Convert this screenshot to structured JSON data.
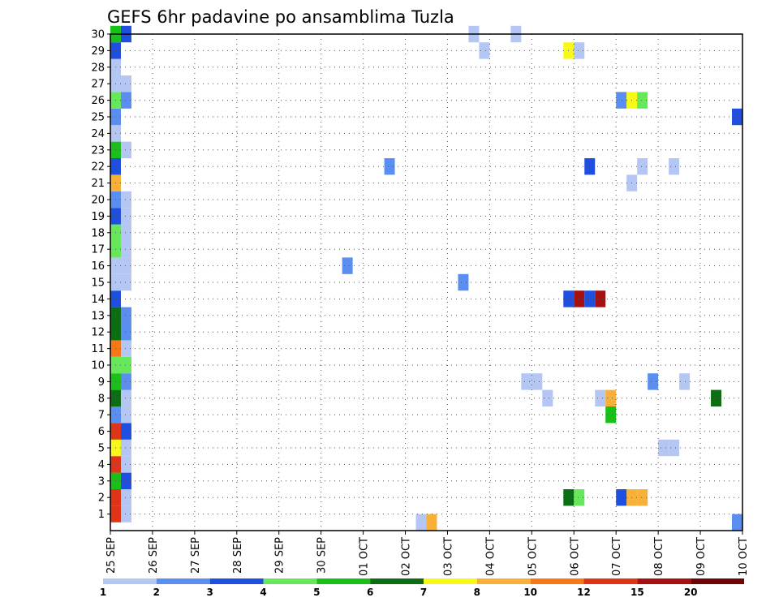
{
  "chart_data": {
    "type": "heatmap",
    "title": "GEFS 6hr padavine po ansamblima Tuzla",
    "x_tick_labels": [
      "25 SEP",
      "26 SEP",
      "27 SEP",
      "28 SEP",
      "29 SEP",
      "30 SEP",
      "01 OCT",
      "02 OCT",
      "03 OCT",
      "04 OCT",
      "05 OCT",
      "06 OCT",
      "07 OCT",
      "08 OCT",
      "09 OCT",
      "10 OCT"
    ],
    "y_tick_labels": [
      "1",
      "2",
      "3",
      "4",
      "5",
      "6",
      "7",
      "8",
      "9",
      "10",
      "11",
      "12",
      "13",
      "14",
      "15",
      "16",
      "17",
      "18",
      "19",
      "20",
      "21",
      "22",
      "23",
      "24",
      "25",
      "26",
      "27",
      "28",
      "29",
      "30"
    ],
    "x_range_days": [
      0,
      15
    ],
    "y_range": [
      0,
      30
    ],
    "grid": true,
    "legend": {
      "placement": "bottom",
      "labels": [
        "1",
        "2",
        "3",
        "4",
        "5",
        "6",
        "7",
        "8",
        "10",
        "12",
        "15",
        "20"
      ],
      "colors": [
        "#b3c6f4",
        "#5a8ef0",
        "#1e4fe0",
        "#66e85a",
        "#18c018",
        "#0c6e12",
        "#f8f818",
        "#f8b038",
        "#f87818",
        "#e03418",
        "#a81010",
        "#6e0606"
      ]
    },
    "cells": [
      {
        "d": 0.125,
        "m": 1,
        "c": 10
      },
      {
        "d": 0.375,
        "m": 1,
        "c": 1
      },
      {
        "d": 0.125,
        "m": 2,
        "c": 10
      },
      {
        "d": 0.375,
        "m": 2,
        "c": 1
      },
      {
        "d": 0.125,
        "m": 3,
        "c": 5
      },
      {
        "d": 0.375,
        "m": 3,
        "c": 3
      },
      {
        "d": 0.125,
        "m": 4,
        "c": 10
      },
      {
        "d": 0.375,
        "m": 4,
        "c": 1
      },
      {
        "d": 0.125,
        "m": 5,
        "c": 7
      },
      {
        "d": 0.375,
        "m": 5,
        "c": 1
      },
      {
        "d": 0.125,
        "m": 6,
        "c": 10
      },
      {
        "d": 0.375,
        "m": 6,
        "c": 3
      },
      {
        "d": 0.125,
        "m": 7,
        "c": 2
      },
      {
        "d": 0.375,
        "m": 7,
        "c": 1
      },
      {
        "d": 0.125,
        "m": 8,
        "c": 6
      },
      {
        "d": 0.375,
        "m": 8,
        "c": 1
      },
      {
        "d": 0.125,
        "m": 9,
        "c": 5
      },
      {
        "d": 0.375,
        "m": 9,
        "c": 2
      },
      {
        "d": 0.125,
        "m": 10,
        "c": 4
      },
      {
        "d": 0.375,
        "m": 10,
        "c": 4
      },
      {
        "d": 0.125,
        "m": 11,
        "c": 9
      },
      {
        "d": 0.375,
        "m": 11,
        "c": 1
      },
      {
        "d": 0.125,
        "m": 12,
        "c": 6
      },
      {
        "d": 0.375,
        "m": 12,
        "c": 2
      },
      {
        "d": 0.125,
        "m": 13,
        "c": 6
      },
      {
        "d": 0.375,
        "m": 13,
        "c": 2
      },
      {
        "d": 0.125,
        "m": 14,
        "c": 3
      },
      {
        "d": 0.125,
        "m": 15,
        "c": 1
      },
      {
        "d": 0.375,
        "m": 15,
        "c": 1
      },
      {
        "d": 0.125,
        "m": 16,
        "c": 1
      },
      {
        "d": 0.375,
        "m": 16,
        "c": 1
      },
      {
        "d": 0.125,
        "m": 17,
        "c": 4
      },
      {
        "d": 0.375,
        "m": 17,
        "c": 1
      },
      {
        "d": 0.125,
        "m": 18,
        "c": 4
      },
      {
        "d": 0.375,
        "m": 18,
        "c": 1
      },
      {
        "d": 0.125,
        "m": 19,
        "c": 3
      },
      {
        "d": 0.375,
        "m": 19,
        "c": 1
      },
      {
        "d": 0.125,
        "m": 20,
        "c": 2
      },
      {
        "d": 0.375,
        "m": 20,
        "c": 1
      },
      {
        "d": 0.125,
        "m": 21,
        "c": 8
      },
      {
        "d": 0.125,
        "m": 22,
        "c": 3
      },
      {
        "d": 0.125,
        "m": 23,
        "c": 5
      },
      {
        "d": 0.375,
        "m": 23,
        "c": 1
      },
      {
        "d": 0.125,
        "m": 24,
        "c": 1
      },
      {
        "d": 0.125,
        "m": 25,
        "c": 2
      },
      {
        "d": 0.125,
        "m": 26,
        "c": 4
      },
      {
        "d": 0.375,
        "m": 26,
        "c": 2
      },
      {
        "d": 0.125,
        "m": 27,
        "c": 1
      },
      {
        "d": 0.375,
        "m": 27,
        "c": 1
      },
      {
        "d": 0.125,
        "m": 28,
        "c": 1
      },
      {
        "d": 0.125,
        "m": 29,
        "c": 3
      },
      {
        "d": 0.125,
        "m": 30,
        "c": 5
      },
      {
        "d": 0.375,
        "m": 30,
        "c": 3
      },
      {
        "d": 5.625,
        "m": 16,
        "c": 2
      },
      {
        "d": 6.625,
        "m": 22,
        "c": 2
      },
      {
        "d": 7.375,
        "m": 0.5,
        "c": 1
      },
      {
        "d": 7.625,
        "m": 0.5,
        "c": 8
      },
      {
        "d": 8.375,
        "m": 15,
        "c": 2
      },
      {
        "d": 8.625,
        "m": 30,
        "c": 1
      },
      {
        "d": 8.875,
        "m": 29,
        "c": 1
      },
      {
        "d": 9.625,
        "m": 30,
        "c": 1
      },
      {
        "d": 9.875,
        "m": 9,
        "c": 1
      },
      {
        "d": 10.125,
        "m": 9,
        "c": 1
      },
      {
        "d": 10.375,
        "m": 8,
        "c": 1
      },
      {
        "d": 10.875,
        "m": 29,
        "c": 7
      },
      {
        "d": 11.125,
        "m": 29,
        "c": 1
      },
      {
        "d": 10.875,
        "m": 14,
        "c": 3
      },
      {
        "d": 11.125,
        "m": 14,
        "c": 11
      },
      {
        "d": 11.375,
        "m": 14,
        "c": 3
      },
      {
        "d": 11.625,
        "m": 14,
        "c": 11
      },
      {
        "d": 10.875,
        "m": 2,
        "c": 6
      },
      {
        "d": 11.125,
        "m": 2,
        "c": 4
      },
      {
        "d": 11.375,
        "m": 22,
        "c": 3
      },
      {
        "d": 11.625,
        "m": 8,
        "c": 1
      },
      {
        "d": 11.875,
        "m": 8,
        "c": 8
      },
      {
        "d": 11.875,
        "m": 7,
        "c": 5
      },
      {
        "d": 12.125,
        "m": 26,
        "c": 2
      },
      {
        "d": 12.375,
        "m": 26,
        "c": 7
      },
      {
        "d": 12.625,
        "m": 26,
        "c": 4
      },
      {
        "d": 12.125,
        "m": 2,
        "c": 3
      },
      {
        "d": 12.375,
        "m": 2,
        "c": 8
      },
      {
        "d": 12.625,
        "m": 2,
        "c": 8
      },
      {
        "d": 12.375,
        "m": 21,
        "c": 1
      },
      {
        "d": 12.625,
        "m": 22,
        "c": 1
      },
      {
        "d": 12.875,
        "m": 9,
        "c": 2
      },
      {
        "d": 13.125,
        "m": 5,
        "c": 1
      },
      {
        "d": 13.375,
        "m": 5,
        "c": 1
      },
      {
        "d": 13.375,
        "m": 22,
        "c": 1
      },
      {
        "d": 13.625,
        "m": 9,
        "c": 1
      },
      {
        "d": 14.375,
        "m": 8,
        "c": 6
      },
      {
        "d": 14.9,
        "m": 25,
        "c": 3
      },
      {
        "d": 14.9,
        "m": 0.5,
        "c": 2
      }
    ]
  }
}
